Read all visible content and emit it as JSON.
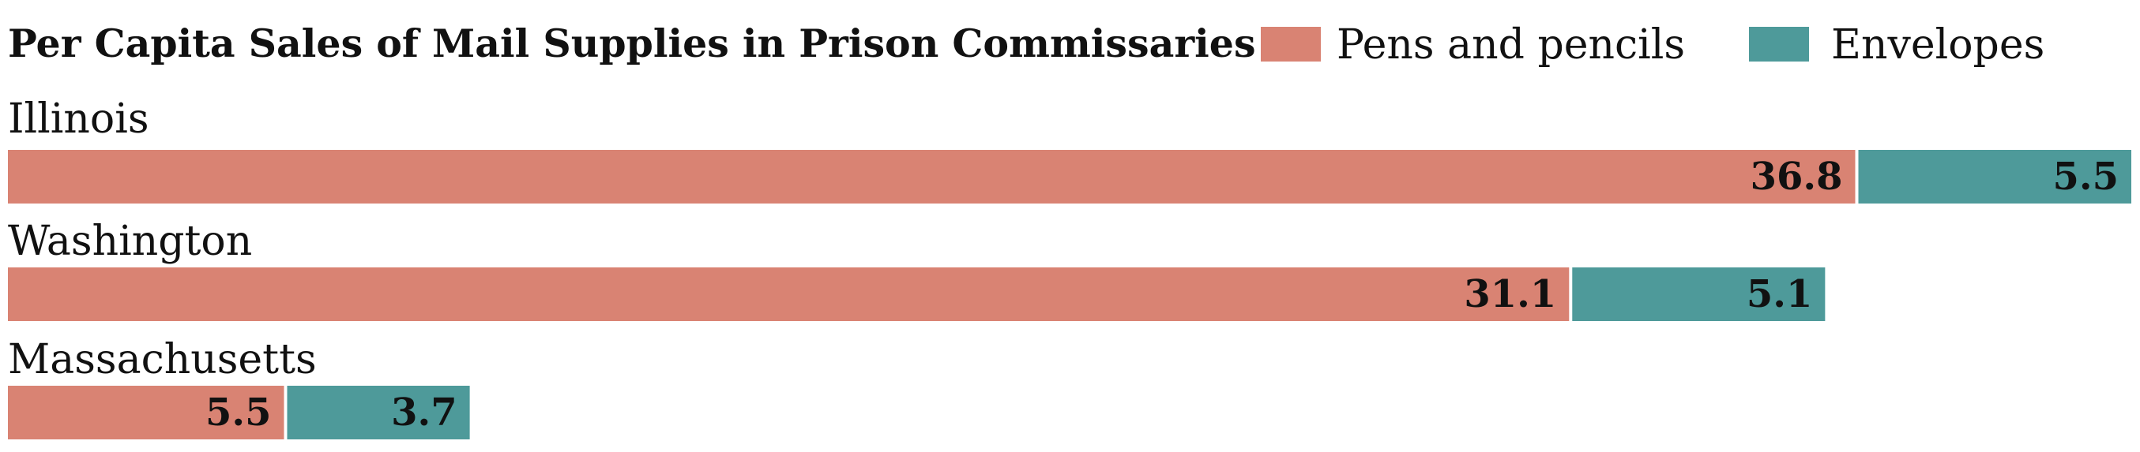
{
  "chart_data": {
    "type": "bar",
    "orientation": "horizontal",
    "stacked": true,
    "title": "Per Capita Sales of Mail Supplies in Prison Commissaries",
    "categories": [
      "Illinois",
      "Washington",
      "Massachusetts"
    ],
    "series": [
      {
        "name": "Pens and pencils",
        "values": [
          36.8,
          31.1,
          5.5
        ],
        "color": "#d98373"
      },
      {
        "name": "Envelopes",
        "values": [
          5.5,
          5.1,
          3.7
        ],
        "color": "#4e9a9a"
      }
    ],
    "xlim": [
      0,
      42.3
    ],
    "grid": false,
    "legend_position": "top-right",
    "data_labels": "inside-end"
  }
}
